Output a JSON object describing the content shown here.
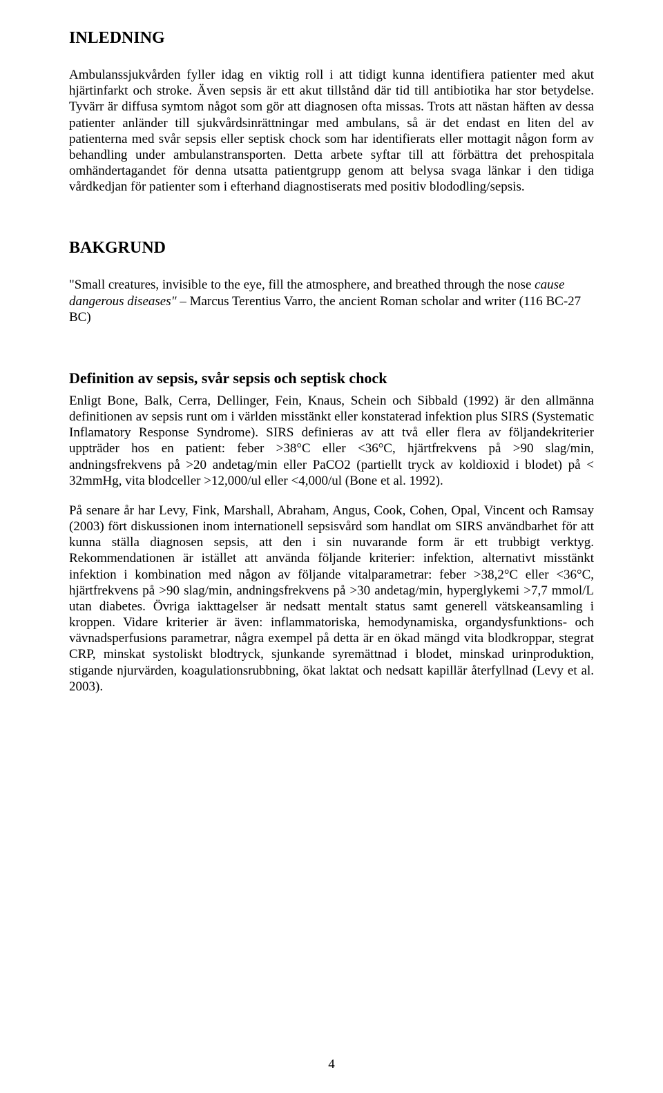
{
  "heading1": "INLEDNING",
  "heading2": "BAKGRUND",
  "subheading": "Definition av sepsis, svår sepsis och septisk chock",
  "intro": "Ambulanssjukvården fyller idag en viktig roll i att tidigt kunna identifiera patienter med akut hjärtinfarkt och stroke. Även sepsis är ett akut tillstånd där tid till antibiotika har stor betydelse. Tyvärr är diffusa symtom något som gör att diagnosen ofta missas. Trots att nästan häften av dessa patienter anländer till sjukvårdsinrättningar med ambulans, så är det endast en liten del av patienterna med svår sepsis eller septisk chock som har identifierats eller mottagit någon form av behandling under ambulanstransporten. Detta arbete syftar till att förbättra det prehospitala omhändertagandet för denna utsatta patientgrupp genom att belysa svaga länkar i den tidiga vårdkedjan för patienter som i efterhand diagnostiserats med positiv blododling/sepsis.",
  "quote_html": "\"Small creatures, invisible to the eye, fill the atmosphere, and breathed through the nose <i>cause dangerous diseases\"</i> – Marcus Terentius Varro, the ancient Roman scholar and writer (116 BC-27 BC)",
  "definition_p1": "Enligt Bone, Balk, Cerra, Dellinger, Fein, Knaus, Schein och Sibbald (1992) är den allmänna definitionen av sepsis runt om i världen misstänkt eller konstaterad infektion plus SIRS (Systematic Inflamatory Response Syndrome). SIRS definieras av att två eller flera av följandekriterier uppträder hos en patient: feber >38°C eller <36°C, hjärtfrekvens på >90 slag/min, andningsfrekvens på >20 andetag/min eller PaCO2 (partiellt tryck av koldioxid i blodet) på < 32mmHg, vita blodceller >12,000/ul eller <4,000/ul (Bone et al. 1992).",
  "definition_p2": "På senare år har Levy, Fink, Marshall, Abraham, Angus, Cook, Cohen, Opal, Vincent och Ramsay (2003) fört diskussionen inom internationell sepsisvård som handlat om SIRS användbarhet för att kunna ställa diagnosen sepsis, att den i sin nuvarande form är ett trubbigt verktyg. Rekommendationen är istället att använda följande kriterier: infektion, alternativt misstänkt infektion i kombination med någon av följande vitalparametrar: feber >38,2°C eller <36°C, hjärtfrekvens på >90 slag/min, andningsfrekvens på >30 andetag/min, hyperglykemi >7,7 mmol/L utan diabetes. Övriga iakttagelser är nedsatt mentalt status samt generell vätskeansamling i kroppen. Vidare kriterier är även: inflammatoriska, hemodynamiska, organdysfunktions- och vävnadsperfusions parametrar, några exempel på detta är en ökad mängd vita blodkroppar, stegrat CRP, minskat systoliskt blodtryck, sjunkande syremättnad i blodet, minskad urinproduktion, stigande njurvärden, koagulationsrubbning, ökat laktat och nedsatt kapillär återfyllnad (Levy et al. 2003).",
  "page_number": "4"
}
